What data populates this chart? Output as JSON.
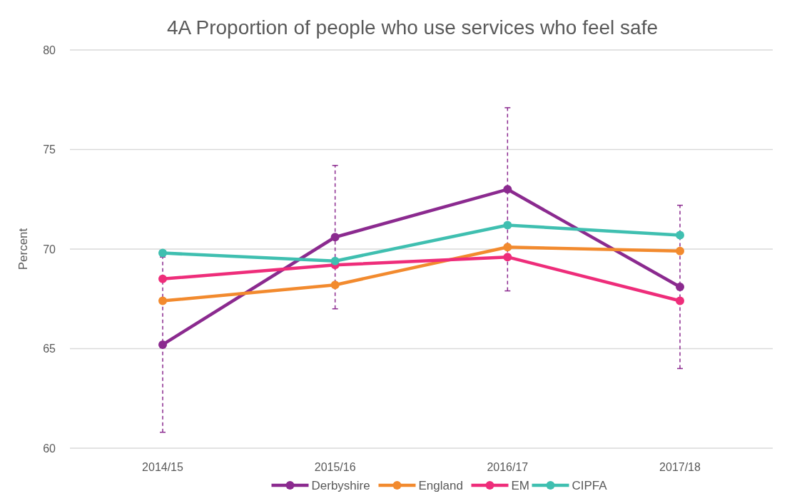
{
  "chart_data": {
    "type": "line",
    "title": "4A Proportion of people who use services who feel safe",
    "ylabel": "Percent",
    "categories": [
      "2014/15",
      "2015/16",
      "2016/17",
      "2017/18"
    ],
    "ylim": [
      60,
      80
    ],
    "yticks": [
      60,
      65,
      70,
      75,
      80
    ],
    "grid": "y",
    "legend": "bottom",
    "marker": "circle",
    "series": [
      {
        "name": "Derbyshire",
        "color": "#8b2a8f",
        "values": [
          65.2,
          70.6,
          73.0,
          68.1
        ],
        "errors": [
          [
            60.8,
            69.6
          ],
          [
            67.0,
            74.2
          ],
          [
            67.9,
            77.1
          ],
          [
            64.0,
            72.2
          ]
        ]
      },
      {
        "name": "England",
        "color": "#f28a2e",
        "values": [
          67.4,
          68.2,
          70.1,
          69.9
        ]
      },
      {
        "name": "EM",
        "color": "#ee2d7a",
        "values": [
          68.5,
          69.2,
          69.6,
          67.4
        ]
      },
      {
        "name": "CIPFA",
        "color": "#3fbfb0",
        "values": [
          69.8,
          69.4,
          71.2,
          70.7
        ]
      }
    ]
  }
}
